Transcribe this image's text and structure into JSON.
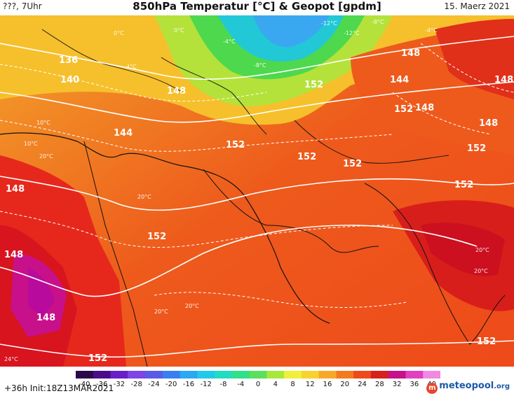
{
  "header": {
    "left": "???, 7Uhr",
    "title": "850hPa Temperatur [°C] & Geopot [gpdm]",
    "right": "15. Maerz 2021"
  },
  "footer": {
    "run": "+36h  Init:18Z13MAR2021",
    "logo_text": "meteopool",
    "logo_suffix": ".org"
  },
  "colorbar": {
    "ticks": [
      "-40",
      "-36",
      "-32",
      "-28",
      "-24",
      "-20",
      "-16",
      "-12",
      "-8",
      "-4",
      "0",
      "4",
      "8",
      "12",
      "16",
      "20",
      "24",
      "28",
      "32",
      "36",
      "40"
    ],
    "colors": [
      "#2a0a4a",
      "#4b0c8a",
      "#6a1ec8",
      "#7f43e6",
      "#5a5ae8",
      "#3a7ff0",
      "#2aa8f2",
      "#22c8ea",
      "#20dcc0",
      "#2ee08a",
      "#5ae05a",
      "#a8e83c",
      "#f0f03a",
      "#f8d22e",
      "#f8a828",
      "#f47a20",
      "#ee4a1a",
      "#d8201a",
      "#c8108a",
      "#e040c0",
      "#f08ae0"
    ]
  },
  "map": {
    "geopot_labels": [
      "136",
      "140",
      "148",
      "144",
      "152",
      "152",
      "152",
      "148",
      "144",
      "148",
      "148",
      "152",
      "152",
      "148",
      "152",
      "152",
      "152",
      "148",
      "148",
      "148",
      "152",
      "152"
    ],
    "temp_labels": [
      "0°C",
      "4°C",
      "0°C",
      "-4°C",
      "-8°C",
      "-12°C",
      "-12°C",
      "-8°C",
      "-4°C",
      "10°C",
      "10°C",
      "20°C",
      "20°C",
      "20°C",
      "20°C",
      "20°C",
      "20°C",
      "24°C"
    ]
  }
}
